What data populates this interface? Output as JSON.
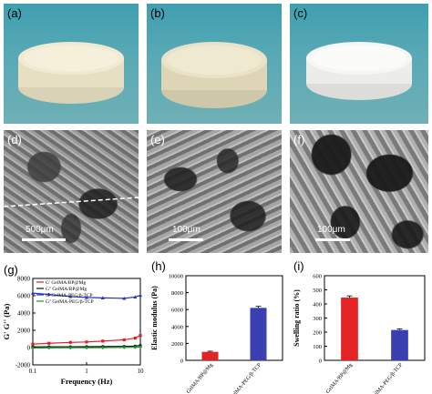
{
  "panels": {
    "a": {
      "label": "(a)"
    },
    "b": {
      "label": "(b)"
    },
    "c": {
      "label": "(c)"
    },
    "d": {
      "label": "(d)",
      "scale": "500μm"
    },
    "e": {
      "label": "(e)",
      "scale": "100μm"
    },
    "f": {
      "label": "(f)",
      "scale": "100μm"
    },
    "g": {
      "label": "(g)"
    },
    "h": {
      "label": "(h)"
    },
    "i": {
      "label": "(i)"
    }
  },
  "chart_data": [
    {
      "panel": "g",
      "type": "line",
      "xlabel": "Frequency (Hz)",
      "ylabel": "G' G'' (Pa)",
      "xscale": "log",
      "xlim": [
        0.1,
        10
      ],
      "ylim": [
        -2000,
        8000
      ],
      "x_ticks": [
        "0.1",
        "1",
        "10"
      ],
      "y_ticks": [
        "-2000",
        "0",
        "2000",
        "4000",
        "6000",
        "8000"
      ],
      "legend": "top-left",
      "series": [
        {
          "name": "G'   GelMA/BP@Mg",
          "color": "#e02020",
          "marker": "square",
          "x": [
            0.1,
            0.2,
            0.5,
            1,
            2,
            5,
            8,
            10
          ],
          "y": [
            400,
            500,
            600,
            650,
            750,
            900,
            1100,
            1400
          ]
        },
        {
          "name": "G''  GelMA/BP@Mg",
          "color": "#111111",
          "marker": "circle",
          "x": [
            0.1,
            0.2,
            0.5,
            1,
            2,
            5,
            8,
            10
          ],
          "y": [
            80,
            90,
            100,
            110,
            120,
            140,
            180,
            250
          ]
        },
        {
          "name": "G'   GelMA-PEG/β-TCP",
          "color": "#2033c0",
          "marker": "triangle",
          "x": [
            0.1,
            0.2,
            0.5,
            1,
            2,
            5,
            8,
            10
          ],
          "y": [
            6300,
            6150,
            5900,
            5800,
            5750,
            5700,
            5850,
            6050
          ]
        },
        {
          "name": "G''  GelMA-PEG/β-TCP",
          "color": "#1a9a2a",
          "marker": "diamond",
          "x": [
            0.1,
            0.2,
            0.5,
            1,
            2,
            5,
            8,
            10
          ],
          "y": [
            -50,
            -30,
            -20,
            -10,
            0,
            20,
            40,
            60
          ]
        }
      ]
    },
    {
      "panel": "h",
      "type": "bar",
      "ylabel": "Elastic modulus (Pa)",
      "categories": [
        "GelMA/BP@Mg",
        "GelMA-PEG/β-TCP"
      ],
      "values": [
        1000,
        6200
      ],
      "errors": [
        80,
        180
      ],
      "colors": [
        "#e42424",
        "#3a3fb2"
      ],
      "ylim": [
        0,
        10000
      ],
      "y_ticks": [
        "0",
        "2000",
        "4000",
        "6000",
        "8000",
        "10000"
      ]
    },
    {
      "panel": "i",
      "type": "bar",
      "ylabel": "Swelling ratio (%)",
      "categories": [
        "GelMA/BP@Mg",
        "GelMA-PEG/β-TCP"
      ],
      "values": [
        445,
        215
      ],
      "errors": [
        12,
        8
      ],
      "colors": [
        "#e42424",
        "#3a3fb2"
      ],
      "ylim": [
        0,
        600
      ],
      "y_ticks": [
        "0",
        "100",
        "200",
        "300",
        "400",
        "500",
        "600"
      ]
    }
  ]
}
